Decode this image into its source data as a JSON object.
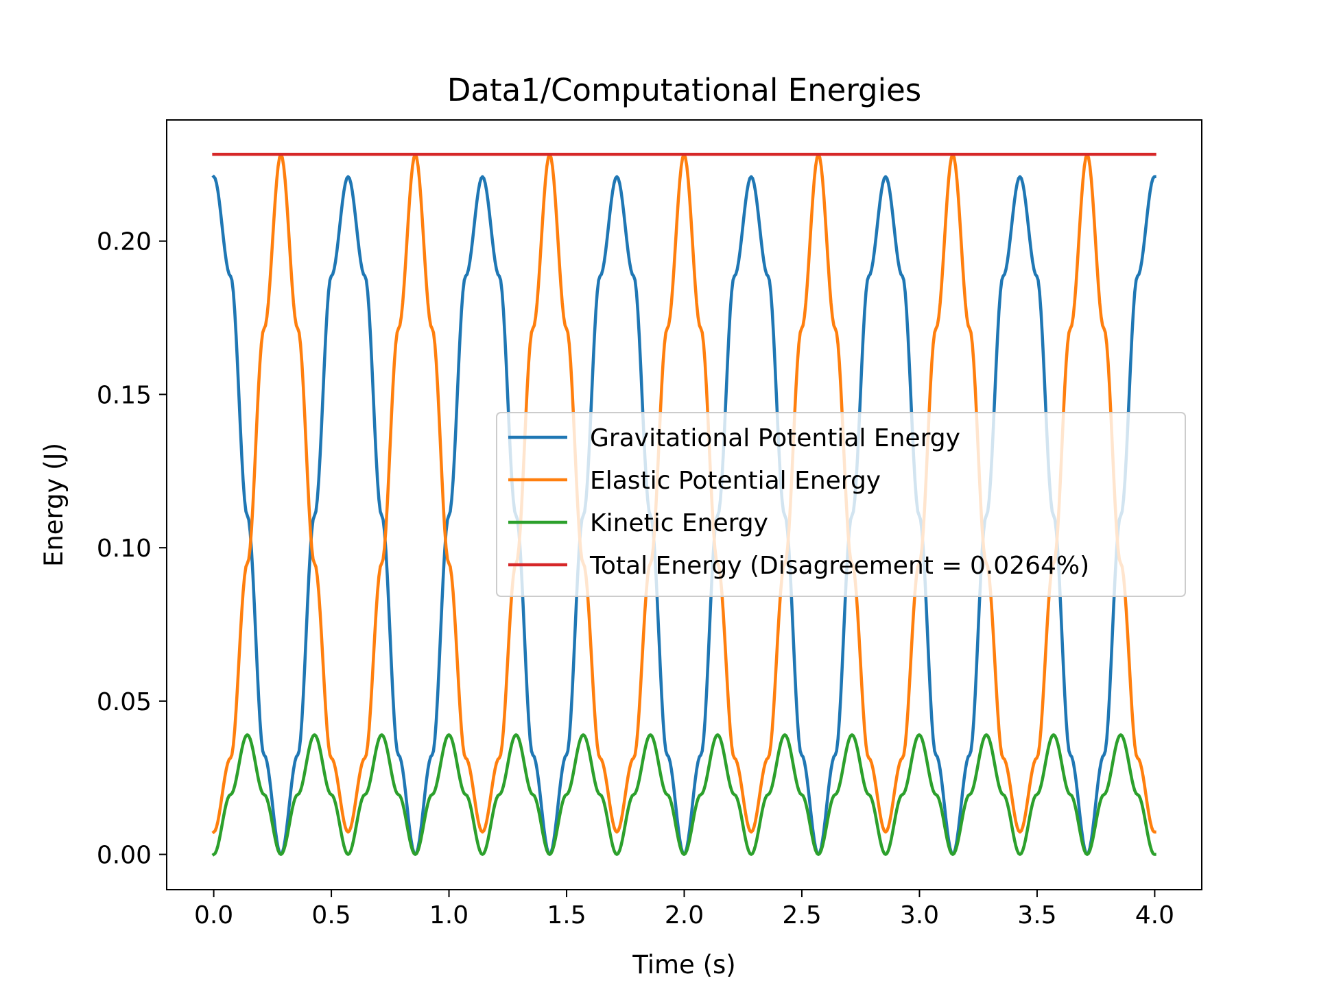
{
  "chart_data": {
    "type": "line",
    "title": "Data1/Computational Energies",
    "xlabel": "Time (s)",
    "ylabel": "Energy (J)",
    "xlim": [
      -0.2,
      4.2
    ],
    "ylim": [
      -0.0115,
      0.2395
    ],
    "xticks": [
      0.0,
      0.5,
      1.0,
      1.5,
      2.0,
      2.5,
      3.0,
      3.5,
      4.0
    ],
    "xtick_labels": [
      "0.0",
      "0.5",
      "1.0",
      "1.5",
      "2.0",
      "2.5",
      "3.0",
      "3.5",
      "4.0"
    ],
    "yticks": [
      0.0,
      0.05,
      0.1,
      0.15,
      0.2
    ],
    "ytick_labels": [
      "0.00",
      "0.05",
      "0.10",
      "0.15",
      "0.20"
    ],
    "grid": false,
    "legend_position": "center-right",
    "series": [
      {
        "name": "Gravitational Potential Energy",
        "color": "#1f77b4",
        "x": [
          0.0,
          0.0714,
          0.1428,
          0.2142,
          0.2856,
          0.357,
          0.4284,
          0.4998,
          0.5712,
          0.6426,
          0.714,
          0.7854,
          0.8568,
          0.9282,
          0.9996,
          1.071,
          1.1424,
          1.2138,
          1.2852,
          1.3566,
          1.428,
          1.4994,
          1.5708,
          1.6422,
          1.7136,
          1.785,
          1.8564,
          1.9278,
          1.9992,
          2.0706,
          2.142,
          2.2134,
          2.2848,
          2.3562,
          2.4276,
          2.499,
          2.5704,
          2.6418,
          2.7132,
          2.7846,
          2.856,
          2.9274,
          2.9988,
          3.0702,
          3.1416,
          3.213,
          3.2844,
          3.3558,
          3.4272,
          3.4986,
          3.57,
          3.6414,
          3.7128,
          3.7842,
          3.8556,
          3.927,
          3.9984,
          4.0
        ],
        "y": [
          0.221,
          0.1886,
          0.1105,
          0.0324,
          0.0,
          0.0324,
          0.1105,
          0.1886,
          0.221,
          0.1886,
          0.1105,
          0.0324,
          0.0,
          0.0324,
          0.1105,
          0.1886,
          0.221,
          0.1886,
          0.1105,
          0.0324,
          0.0,
          0.0324,
          0.1105,
          0.1886,
          0.221,
          0.1886,
          0.1105,
          0.0324,
          0.0,
          0.0324,
          0.1105,
          0.1886,
          0.221,
          0.1886,
          0.1105,
          0.0324,
          0.0,
          0.0324,
          0.1105,
          0.1886,
          0.221,
          0.1886,
          0.1105,
          0.0324,
          0.0,
          0.0324,
          0.1105,
          0.1886,
          0.221,
          0.1886,
          0.1105,
          0.0324,
          0.0,
          0.0324,
          0.1105,
          0.1886,
          0.221,
          0.221
        ]
      },
      {
        "name": "Elastic Potential Energy",
        "color": "#ff7f0e",
        "x": [
          0.0,
          0.0714,
          0.1428,
          0.2142,
          0.2856,
          0.357,
          0.4284,
          0.4998,
          0.5712,
          0.6426,
          0.714,
          0.7854,
          0.8568,
          0.9282,
          0.9996,
          1.071,
          1.1424,
          1.2138,
          1.2852,
          1.3566,
          1.428,
          1.4994,
          1.5708,
          1.6422,
          1.7136,
          1.785,
          1.8564,
          1.9278,
          1.9992,
          2.0706,
          2.142,
          2.2134,
          2.2848,
          2.3562,
          2.4276,
          2.499,
          2.5704,
          2.6418,
          2.7132,
          2.7846,
          2.856,
          2.9274,
          2.9988,
          3.0702,
          3.1416,
          3.213,
          3.2844,
          3.3558,
          3.4272,
          3.4986,
          3.57,
          3.6414,
          3.7128,
          3.7842,
          3.8556,
          3.927,
          3.9984,
          4.0
        ],
        "y": [
          0.0073,
          0.0314,
          0.0949,
          0.1715,
          0.2282,
          0.1715,
          0.0949,
          0.0314,
          0.0073,
          0.0314,
          0.0949,
          0.1715,
          0.2282,
          0.1715,
          0.0949,
          0.0314,
          0.0073,
          0.0314,
          0.0949,
          0.1715,
          0.2282,
          0.1715,
          0.0949,
          0.0314,
          0.0073,
          0.0314,
          0.0949,
          0.1715,
          0.2282,
          0.1715,
          0.0949,
          0.0314,
          0.0073,
          0.0314,
          0.0949,
          0.1715,
          0.2282,
          0.1715,
          0.0949,
          0.0314,
          0.0073,
          0.0314,
          0.0949,
          0.1715,
          0.2282,
          0.1715,
          0.0949,
          0.0314,
          0.0073,
          0.0314,
          0.0949,
          0.1715,
          0.2282,
          0.1715,
          0.0949,
          0.0314,
          0.0073,
          0.0073
        ]
      },
      {
        "name": "Kinetic Energy",
        "color": "#2ca02c",
        "x": [
          0.0,
          0.0714,
          0.1428,
          0.2142,
          0.2856,
          0.357,
          0.4284,
          0.4998,
          0.5712,
          0.6426,
          0.714,
          0.7854,
          0.8568,
          0.9282,
          0.9996,
          1.071,
          1.1424,
          1.2138,
          1.2852,
          1.3566,
          1.428,
          1.4994,
          1.5708,
          1.6422,
          1.7136,
          1.785,
          1.8564,
          1.9278,
          1.9992,
          2.0706,
          2.142,
          2.2134,
          2.2848,
          2.3562,
          2.4276,
          2.499,
          2.5704,
          2.6418,
          2.7132,
          2.7846,
          2.856,
          2.9274,
          2.9988,
          3.0702,
          3.1416,
          3.213,
          3.2844,
          3.3558,
          3.4272,
          3.4986,
          3.57,
          3.6414,
          3.7128,
          3.7842,
          3.8556,
          3.927,
          3.9984,
          4.0
        ],
        "y": [
          0.0,
          0.0195,
          0.039,
          0.0195,
          0.0,
          0.0195,
          0.039,
          0.0195,
          0.0,
          0.0195,
          0.039,
          0.0195,
          0.0,
          0.0195,
          0.039,
          0.0195,
          0.0,
          0.0195,
          0.039,
          0.0195,
          0.0,
          0.0195,
          0.039,
          0.0195,
          0.0,
          0.0195,
          0.039,
          0.0195,
          0.0,
          0.0195,
          0.039,
          0.0195,
          0.0,
          0.0195,
          0.039,
          0.0195,
          0.0,
          0.0195,
          0.039,
          0.0195,
          0.0,
          0.0195,
          0.039,
          0.0195,
          0.0,
          0.0195,
          0.039,
          0.0195,
          0.0,
          0.0195,
          0.039,
          0.0195,
          0.0,
          0.0195,
          0.039,
          0.0195,
          0.0,
          0.0
        ]
      },
      {
        "name": "Total Energy (Disagreement = 0.0264%)",
        "color": "#d62728",
        "x": [
          0.0,
          0.5,
          1.0,
          1.5,
          2.0,
          2.5,
          3.0,
          3.5,
          4.0
        ],
        "y": [
          0.2283,
          0.2283,
          0.2283,
          0.2283,
          0.2283,
          0.2283,
          0.2283,
          0.2283,
          0.2283
        ]
      }
    ]
  }
}
